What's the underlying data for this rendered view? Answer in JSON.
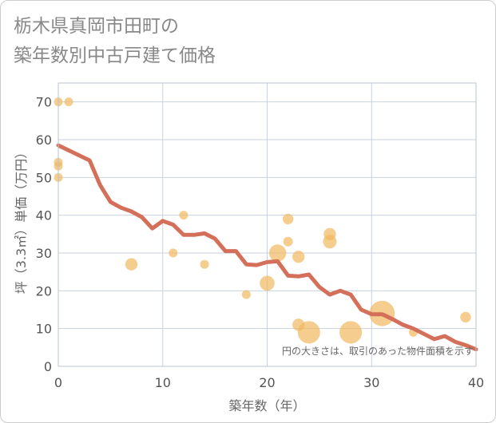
{
  "title_line1": "栃木県真岡市田町の",
  "title_line2": "築年数別中古戸建て価格",
  "chart_data": {
    "type": "scatter",
    "xlabel": "築年数（年）",
    "ylabel": "坪（3.3㎡）単価（万円）",
    "xlim": [
      0,
      40
    ],
    "ylim": [
      0,
      75
    ],
    "xticks": [
      0,
      10,
      20,
      30,
      40
    ],
    "yticks": [
      0,
      10,
      20,
      30,
      40,
      50,
      60,
      70
    ],
    "grid": true,
    "note": "円の大きさは、取引のあった物件面積を示す",
    "colors": {
      "bubble": "#f0b860",
      "line": "#d4705a",
      "grid": "#c8d2de"
    },
    "bubbles": [
      {
        "x": 0,
        "y": 70,
        "size": 1
      },
      {
        "x": 1,
        "y": 70,
        "size": 1
      },
      {
        "x": 0,
        "y": 54,
        "size": 1
      },
      {
        "x": 0,
        "y": 53,
        "size": 1
      },
      {
        "x": 0,
        "y": 50,
        "size": 1
      },
      {
        "x": 7,
        "y": 27,
        "size": 2
      },
      {
        "x": 11,
        "y": 30,
        "size": 1
      },
      {
        "x": 12,
        "y": 40,
        "size": 1
      },
      {
        "x": 14,
        "y": 27,
        "size": 1
      },
      {
        "x": 18,
        "y": 19,
        "size": 1
      },
      {
        "x": 20,
        "y": 22,
        "size": 3
      },
      {
        "x": 21,
        "y": 30,
        "size": 4
      },
      {
        "x": 22,
        "y": 39,
        "size": 1.5
      },
      {
        "x": 22,
        "y": 33,
        "size": 1.2
      },
      {
        "x": 23,
        "y": 29,
        "size": 2
      },
      {
        "x": 23,
        "y": 11,
        "size": 2
      },
      {
        "x": 24,
        "y": 9,
        "size": 7
      },
      {
        "x": 26,
        "y": 35,
        "size": 2
      },
      {
        "x": 26,
        "y": 33,
        "size": 2.5
      },
      {
        "x": 28,
        "y": 9,
        "size": 7
      },
      {
        "x": 31,
        "y": 14,
        "size": 9
      },
      {
        "x": 34,
        "y": 9,
        "size": 1
      },
      {
        "x": 39,
        "y": 13,
        "size": 1.5
      }
    ],
    "trend": {
      "x": [
        0,
        3,
        4,
        5,
        6,
        7,
        8,
        9,
        10,
        11,
        12,
        13,
        14,
        15,
        16,
        17,
        18,
        19,
        20,
        21,
        22,
        23,
        24,
        25,
        26,
        27,
        28,
        29,
        30,
        31,
        32,
        33,
        34,
        35,
        36,
        37,
        38,
        39,
        40
      ],
      "y": [
        58.5,
        54.5,
        48,
        43.5,
        42,
        41,
        39.5,
        36.5,
        38.5,
        37.5,
        34.8,
        34.8,
        35.2,
        33.8,
        30.5,
        30.5,
        27,
        26.8,
        27.6,
        27.8,
        24,
        23.8,
        24.3,
        21,
        19,
        20,
        19,
        15,
        13.8,
        13.8,
        12.5,
        11,
        10,
        8.6,
        7.2,
        8,
        6.5,
        5.6,
        4.5
      ]
    }
  }
}
